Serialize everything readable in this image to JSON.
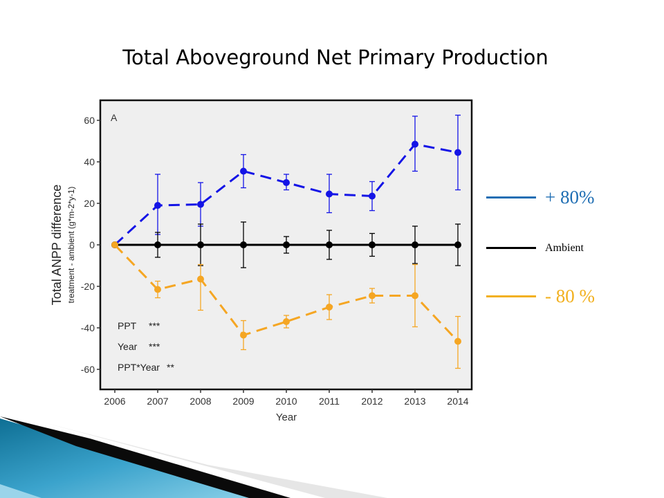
{
  "slide": {
    "title": "Total Aboveground Net Primary Production"
  },
  "legend": [
    {
      "label": "+ 80%",
      "color": "#1f6eb3"
    },
    {
      "label": "Ambient",
      "color": "#000000"
    },
    {
      "label": "- 80 %",
      "color": "#f2b01e"
    }
  ],
  "chart_data": {
    "type": "line",
    "panel_label": "A",
    "xlabel": "Year",
    "ylabel": "Total ANPP difference",
    "ylabel_sub": "treatment - ambient (g*m-2*y-1)",
    "x": [
      2006,
      2007,
      2008,
      2009,
      2010,
      2011,
      2012,
      2013,
      2014
    ],
    "x_ticks": [
      "2006",
      "2007",
      "2008",
      "2009",
      "2010",
      "2011",
      "2012",
      "2013",
      "2014"
    ],
    "y_ticks": [
      60,
      40,
      20,
      0,
      -20,
      -40,
      -60
    ],
    "ylim": [
      -70,
      70
    ],
    "grid": false,
    "series": [
      {
        "color": "#1414e6",
        "dash": "dashed",
        "values": [
          0,
          19,
          19.5,
          35.5,
          30,
          24.5,
          23.5,
          48.5,
          44.5
        ],
        "err_low": [
          0,
          5,
          9,
          27.5,
          26.5,
          15.5,
          16.5,
          35.5,
          26.5
        ],
        "err_high": [
          0,
          34,
          30,
          43.5,
          34,
          34,
          30.5,
          62,
          62.5
        ]
      },
      {
        "color": "#000000",
        "dash": "solid",
        "values": [
          0,
          0,
          0,
          0,
          0,
          0,
          0,
          0,
          0
        ],
        "err_low": [
          0,
          -6,
          -10,
          -11,
          -4,
          -7,
          -5.5,
          -9,
          -10
        ],
        "err_high": [
          0,
          6,
          10,
          11,
          4,
          7,
          5.5,
          9,
          10
        ]
      },
      {
        "color": "#f5a623",
        "dash": "dashed",
        "values": [
          0,
          -21.5,
          -16.5,
          -43.5,
          -37,
          -30,
          -24.5,
          -24.5,
          -46.5
        ],
        "err_low": [
          0,
          -25.5,
          -31.5,
          -50.5,
          -40,
          -36,
          -28,
          -39.5,
          -59.5
        ],
        "err_high": [
          0,
          -17.5,
          -9.5,
          -36.5,
          -34,
          -24,
          -21,
          -9.5,
          -34.5
        ]
      }
    ],
    "annotations": [
      {
        "label": "PPT",
        "value": "***"
      },
      {
        "label": "Year",
        "value": "***"
      },
      {
        "label": "PPT*Year",
        "value": "**"
      }
    ]
  }
}
